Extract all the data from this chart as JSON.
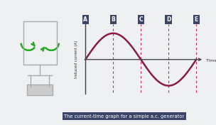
{
  "bg_color": "#eef0f2",
  "sine_color": "#8b1a4a",
  "sine_lw": 1.8,
  "axis_color": "#444444",
  "dashed_color": "#cc2266",
  "labels": [
    "A",
    "B",
    "C",
    "D",
    "E"
  ],
  "label_box_color": "#3b4568",
  "label_text_color": "#ffffff",
  "xlabel": "Time (s)",
  "ylabel": "Induced current (A)",
  "caption": "The current-time graph for a simple a.c. generator",
  "caption_box_color": "#3b4568",
  "caption_text_color": "#ffffff",
  "arrow_color": "#22aa22",
  "gen_line_color": "#aaaaaa",
  "gen_fill_color": "#cccccc"
}
